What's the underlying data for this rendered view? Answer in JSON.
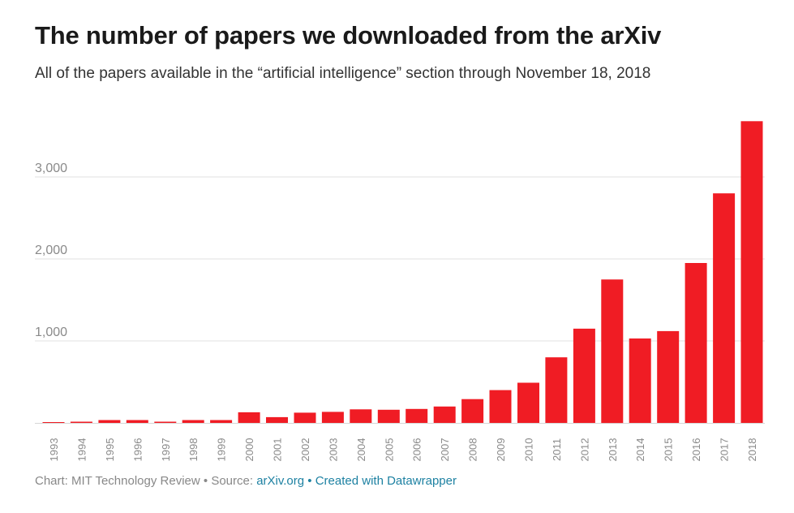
{
  "header": {
    "title": "The number of papers we downloaded from the arXiv",
    "subtitle": "All of the papers available in the “artificial intelligence” section through November 18, 2018"
  },
  "footer": {
    "chart_prefix": "Chart: MIT Technology Review",
    "separator": "•",
    "source_prefix": "Source:",
    "source_link": "arXiv.org",
    "created_with": "Created with Datawrapper"
  },
  "colors": {
    "bar": "#f01c24",
    "grid": "#e0e0e0",
    "axis_label": "#8a8a8a",
    "link": "#1d81a2"
  },
  "chart_data": {
    "type": "bar",
    "categories": [
      "1993",
      "1994",
      "1995",
      "1996",
      "1997",
      "1998",
      "1999",
      "2000",
      "2001",
      "2002",
      "2003",
      "2004",
      "2005",
      "2006",
      "2007",
      "2008",
      "2009",
      "2010",
      "2011",
      "2012",
      "2013",
      "2014",
      "2015",
      "2016",
      "2017",
      "2018"
    ],
    "values": [
      5,
      15,
      35,
      35,
      15,
      35,
      35,
      130,
      70,
      125,
      135,
      165,
      160,
      170,
      200,
      290,
      400,
      490,
      800,
      1150,
      1750,
      1030,
      1120,
      1950,
      2800,
      3680
    ],
    "y_ticks": [
      1000,
      2000,
      3000
    ],
    "y_tick_labels": [
      "1,000",
      "2,000",
      "3,000"
    ],
    "ylim": [
      0,
      3800
    ],
    "grid": true,
    "xlabel": "",
    "ylabel": ""
  }
}
